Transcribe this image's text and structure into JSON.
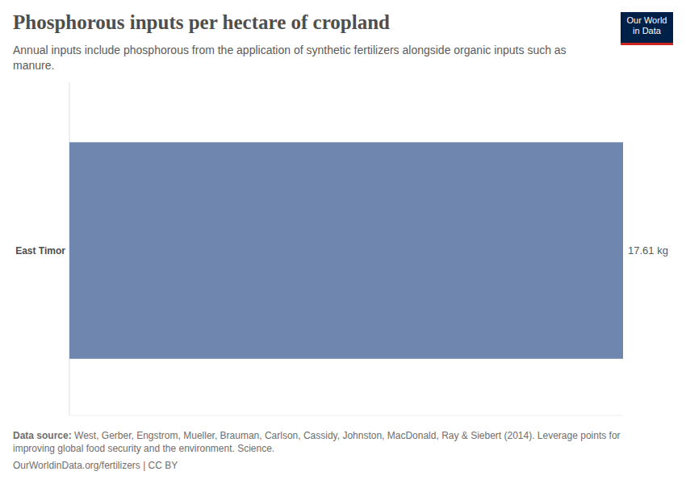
{
  "chart_data": {
    "type": "bar",
    "orientation": "horizontal",
    "title": "Phosphorous inputs per hectare of cropland",
    "subtitle": "Annual inputs include phosphorous from the application of synthetic fertilizers alongside organic inputs such as manure.",
    "categories": [
      "East Timor"
    ],
    "values": [
      17.61
    ],
    "value_labels": [
      "17.61 kg"
    ],
    "color": "#6f87ae",
    "data_labels": true,
    "tick_labels": "y",
    "xlim": [
      0,
      17.61
    ],
    "xticks": [
      0
    ],
    "grid": false,
    "source_label": "Data source:",
    "source": "West, Gerber, Engstrom, Mueller, Brauman, Carlson, Cassidy, Johnston, MacDonald, Ray & Siebert (2014). Leverage points for improving global food security and the environment. Science.",
    "footer": "OurWorldinData.org/fertilizers | CC BY",
    "logo": [
      "Our World",
      "in Data"
    ]
  }
}
